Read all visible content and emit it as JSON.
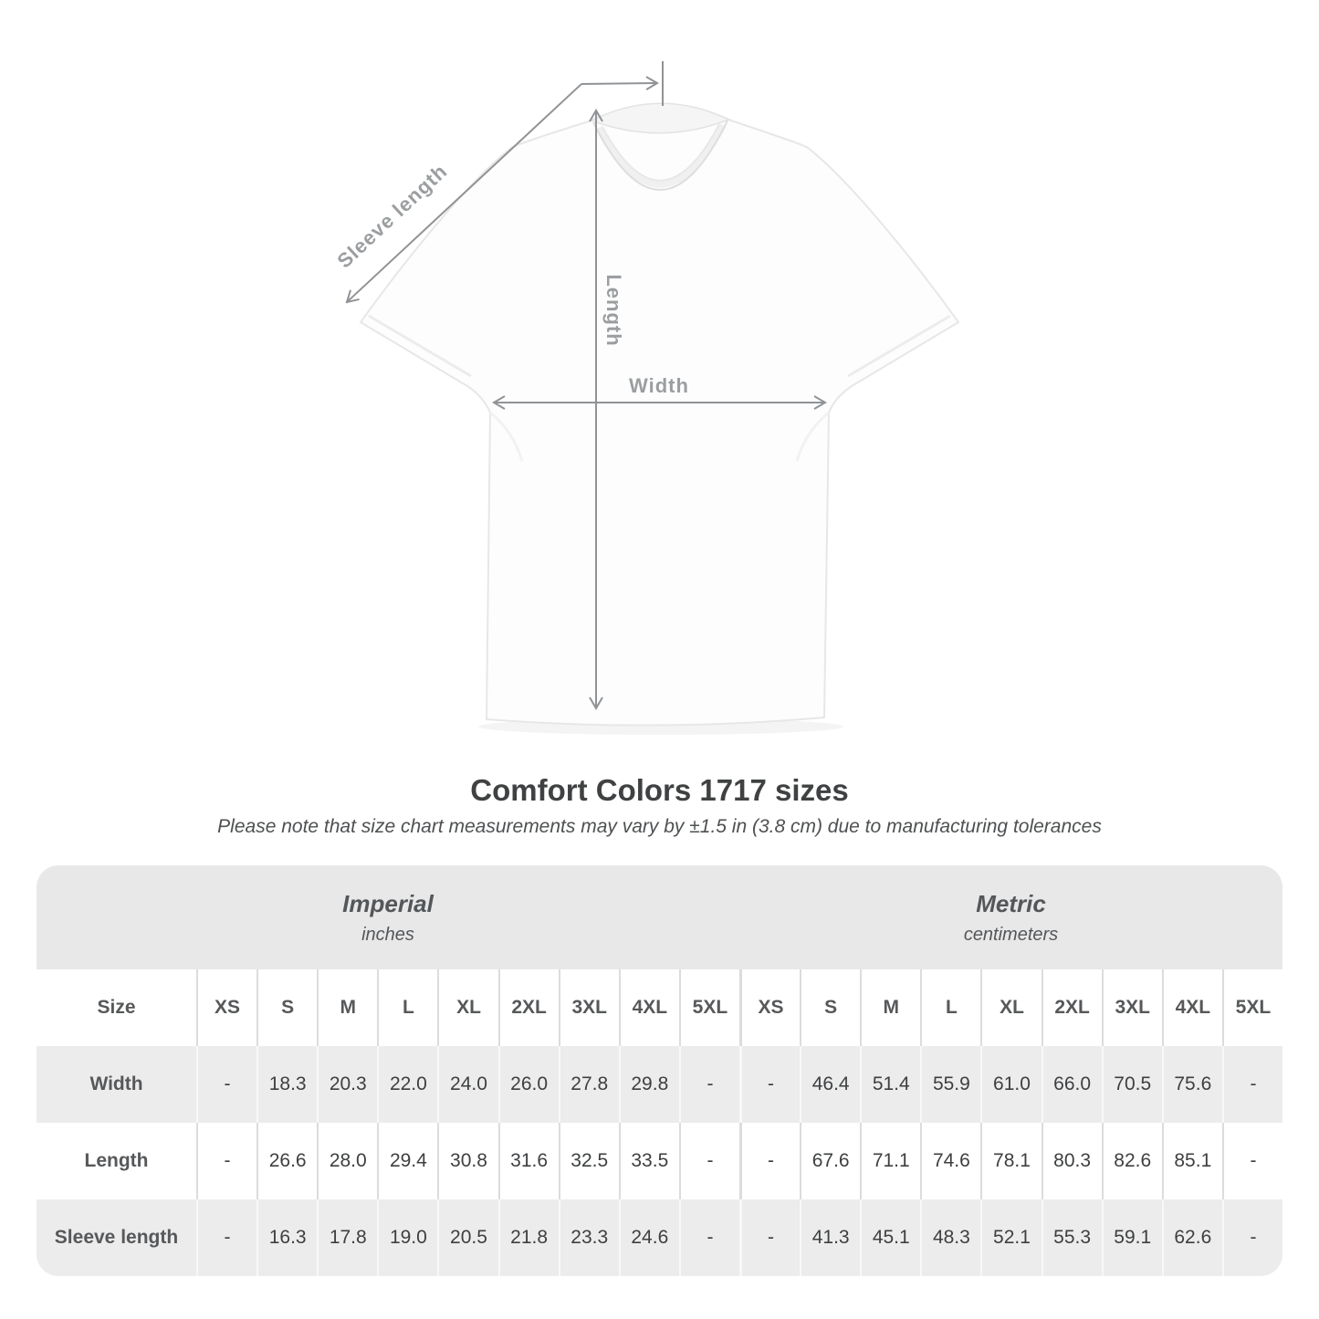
{
  "title": "Comfort Colors 1717 sizes",
  "note": "Please note that size chart measurements may vary by ±1.5 in (3.8 cm) due to manufacturing tolerances",
  "diagram": {
    "labels": {
      "sleeve_length": "Sleeve length",
      "length": "Length",
      "width": "Width"
    },
    "arrow_color": "#909396",
    "label_color": "#9b9ea0"
  },
  "chart_data": {
    "type": "table",
    "title": "Comfort Colors 1717 sizes",
    "corner_label": "Size",
    "unit_groups": [
      {
        "name": "Imperial",
        "unit": "inches"
      },
      {
        "name": "Metric",
        "unit": "centimeters"
      }
    ],
    "sizes": [
      "XS",
      "S",
      "M",
      "L",
      "XL",
      "2XL",
      "3XL",
      "4XL",
      "5XL"
    ],
    "rows": [
      {
        "label": "Width",
        "imperial": [
          "-",
          "18.3",
          "20.3",
          "22.0",
          "24.0",
          "26.0",
          "27.8",
          "29.8",
          "-"
        ],
        "metric": [
          "-",
          "46.4",
          "51.4",
          "55.9",
          "61.0",
          "66.0",
          "70.5",
          "75.6",
          "-"
        ]
      },
      {
        "label": "Length",
        "imperial": [
          "-",
          "26.6",
          "28.0",
          "29.4",
          "30.8",
          "31.6",
          "32.5",
          "33.5",
          "-"
        ],
        "metric": [
          "-",
          "67.6",
          "71.1",
          "74.6",
          "78.1",
          "80.3",
          "82.6",
          "85.1",
          "-"
        ]
      },
      {
        "label": "Sleeve length",
        "imperial": [
          "-",
          "16.3",
          "17.8",
          "19.0",
          "20.5",
          "21.8",
          "23.3",
          "24.6",
          "-"
        ],
        "metric": [
          "-",
          "41.3",
          "45.1",
          "48.3",
          "52.1",
          "55.3",
          "59.1",
          "62.6",
          "-"
        ]
      }
    ],
    "colors": {
      "header_band": "#e8e8e8",
      "row_gray": "#ececec",
      "row_white": "#ffffff"
    }
  }
}
